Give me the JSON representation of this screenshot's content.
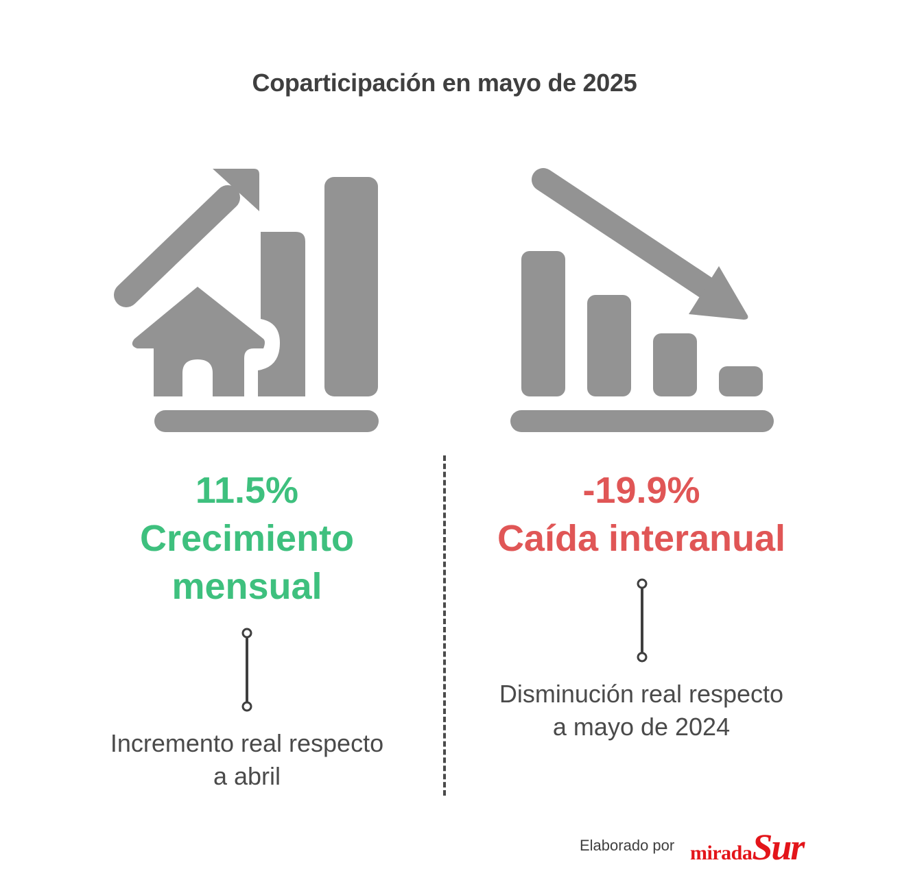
{
  "title": "Coparticipación en mayo de 2025",
  "left": {
    "value": "11.5%",
    "label_line1": "Crecimiento",
    "label_line2": "mensual",
    "desc_line1": "Incremento real respecto",
    "desc_line2": "a abril",
    "color": "#3ec07e",
    "icon": "house-growth-chart-icon"
  },
  "right": {
    "value": "-19.9%",
    "label_line1": "Caída interanual",
    "desc_line1": "Disminución real respecto",
    "desc_line2": "a mayo de 2024",
    "color": "#e05656",
    "icon": "declining-bar-chart-icon"
  },
  "footer": {
    "credit": "Elaborado por",
    "brand_part1": "mirada",
    "brand_part2": "Sur",
    "brand_color": "#e3151a"
  },
  "colors": {
    "icon_gray": "#939393",
    "text_dark": "#3f3f3f"
  }
}
